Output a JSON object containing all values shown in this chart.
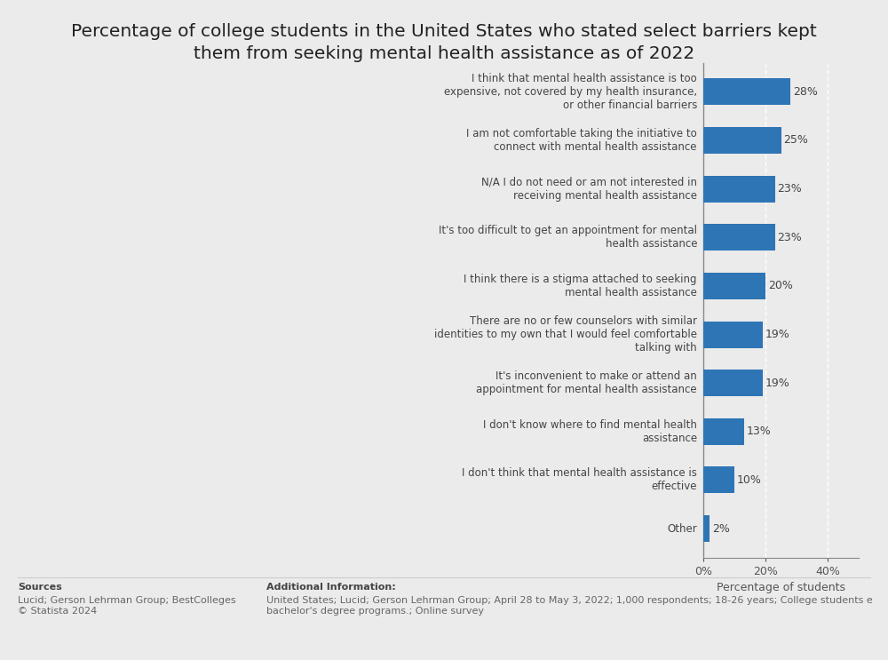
{
  "title": "Percentage of college students in the United States who stated select barriers kept\nthem from seeking mental health assistance as of 2022",
  "categories": [
    "I think that mental health assistance is too\nexpensive, not covered by my health insurance,\nor other financial barriers",
    "I am not comfortable taking the initiative to\nconnect with mental health assistance",
    "N/A I do not need or am not interested in\nreceiving mental health assistance",
    "It's too difficult to get an appointment for mental\nhealth assistance",
    "I think there is a stigma attached to seeking\nmental health assistance",
    "There are no or few counselors with similar\nidentities to my own that I would feel comfortable\ntalking with",
    "It's inconvenient to make or attend an\nappointment for mental health assistance",
    "I don't know where to find mental health\nassistance",
    "I don't think that mental health assistance is\neffective",
    "Other"
  ],
  "values": [
    28,
    25,
    23,
    23,
    20,
    19,
    19,
    13,
    10,
    2
  ],
  "bar_color": "#2E75B6",
  "background_color": "#ebebeb",
  "xlabel": "Percentage of students",
  "xlim": [
    0,
    50
  ],
  "xticks": [
    0,
    20,
    40
  ],
  "xticklabels": [
    "0%",
    "20%",
    "40%"
  ],
  "value_labels": [
    "28%",
    "25%",
    "23%",
    "23%",
    "20%",
    "19%",
    "19%",
    "13%",
    "10%",
    "2%"
  ],
  "title_fontsize": 14.5,
  "label_fontsize": 9,
  "tick_fontsize": 9,
  "sources_bold": "Sources",
  "sources_text": "Lucid; Gerson Lehrman Group; BestColleges\n© Statista 2024",
  "additional_info_title": "Additional Information:",
  "additional_info_text": "United States; Lucid; Gerson Lehrman Group; April 28 to May 3, 2022; 1,000 respondents; 18-26 years; College students e\nbachelor's degree programs.; Online survey"
}
